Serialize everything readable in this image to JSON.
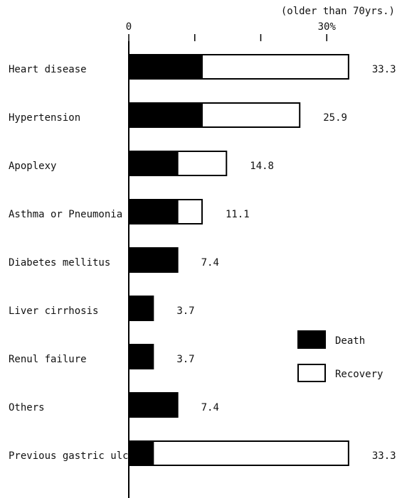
{
  "chart_data": {
    "type": "stacked-barh",
    "subtitle": "(older than 70yrs.)",
    "categories": [
      "Heart disease",
      "Hypertension",
      "Apoplexy",
      "Asthma or Pneumonia",
      "Diabetes mellitus",
      "Liver cirrhosis",
      "Renul failure",
      "Others",
      "Previous gastric ulcer"
    ],
    "series": [
      {
        "name": "Death",
        "color": "#000000",
        "values": [
          11.1,
          11.1,
          7.4,
          7.4,
          7.4,
          3.7,
          3.7,
          7.4,
          3.7
        ]
      },
      {
        "name": "Recovery",
        "color": "#ffffff",
        "values": [
          22.2,
          14.8,
          7.4,
          3.7,
          0,
          0,
          0,
          0,
          29.6
        ]
      }
    ],
    "totals": [
      33.3,
      25.9,
      14.8,
      11.1,
      7.4,
      3.7,
      3.7,
      7.4,
      33.3
    ],
    "xlim": [
      0,
      40
    ],
    "xticks": [
      0,
      {
        "value": 30,
        "label": "30%"
      }
    ],
    "minor_xticks": [
      10,
      20
    ],
    "legend": "right"
  }
}
